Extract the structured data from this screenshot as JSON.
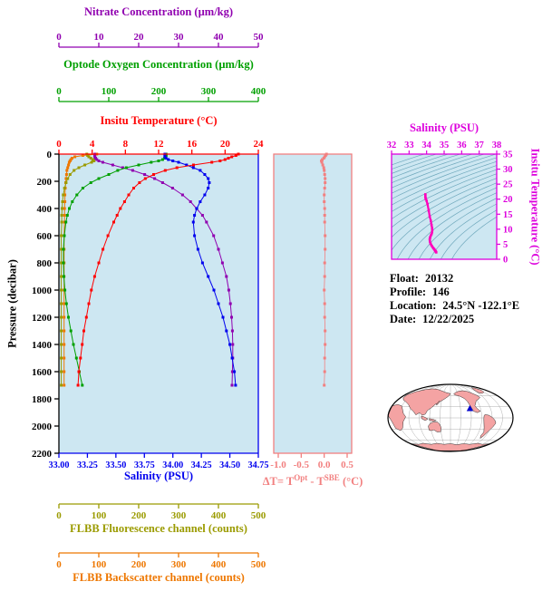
{
  "style": {
    "background": "#FFFFFF",
    "panel_bg": "#CDE7F2",
    "contour_color": "#6FA8BC",
    "axis_black": "#000000"
  },
  "info": {
    "float_label": "Float:",
    "float_value": "20132",
    "profile_label": "Profile:",
    "profile_value": "146",
    "location_label": "Location:",
    "location_value": "24.5°N -122.1°E",
    "date_label": "Date:",
    "date_value": "12/22/2025"
  },
  "map": {
    "marker": {
      "lat": 24.5,
      "lon": -122.1
    },
    "land_color": "#F4A3A3",
    "ocean_color": "#FFFFFF",
    "marker_color": "#0000CC"
  },
  "chart_data": {
    "main": {
      "type": "line",
      "title": "Float profile plot",
      "y_axis": {
        "label": "Pressure (decibar)",
        "min": 0,
        "max": 2200,
        "ticks": [
          0,
          200,
          400,
          600,
          800,
          1000,
          1200,
          1400,
          1600,
          1800,
          2000,
          2200
        ]
      },
      "pressures": [
        0,
        10,
        20,
        30,
        40,
        50,
        60,
        80,
        100,
        120,
        150,
        180,
        210,
        250,
        300,
        350,
        400,
        450,
        500,
        600,
        700,
        800,
        900,
        1000,
        1100,
        1200,
        1300,
        1400,
        1500,
        1600,
        1700
      ],
      "axes": {
        "nitrate": {
          "label": "Nitrate Concentration (µm/kg)",
          "color": "#9000B0",
          "min": 0,
          "max": 50,
          "ticks": [
            0,
            10,
            20,
            30,
            40,
            50
          ]
        },
        "oxygen": {
          "label": "Optode Oxygen Concentration (µm/kg)",
          "color": "#00A000",
          "min": 0,
          "max": 400,
          "ticks": [
            0,
            100,
            200,
            300,
            400
          ]
        },
        "temperature": {
          "label": "Insitu Temperature (°C)",
          "color": "#FF0000",
          "min": 0,
          "max": 24,
          "ticks": [
            0,
            4,
            8,
            12,
            16,
            20,
            24
          ]
        },
        "salinity": {
          "label": "Salinity (PSU)",
          "color": "#0000EE",
          "min": 33.0,
          "max": 34.75,
          "ticks": [
            "33.00",
            "33.25",
            "33.50",
            "33.75",
            "34.00",
            "34.25",
            "34.50",
            "34.75"
          ]
        },
        "fluorescence": {
          "label": "FLBB Fluorescence channel (counts)",
          "color": "#9B9B00",
          "min": 0,
          "max": 500,
          "ticks": [
            0,
            100,
            200,
            300,
            400,
            500
          ]
        },
        "backscatter": {
          "label": "FLBB Backscatter channel (counts)",
          "color": "#EE7700",
          "min": 0,
          "max": 500,
          "ticks": [
            0,
            100,
            200,
            300,
            400,
            500
          ]
        }
      },
      "series": {
        "temperature": [
          21.6,
          21.3,
          20.8,
          20.4,
          20.0,
          19.4,
          18.4,
          16.2,
          14.2,
          12.8,
          11.4,
          10.4,
          9.7,
          9.0,
          8.4,
          7.9,
          7.4,
          7.0,
          6.6,
          5.9,
          5.3,
          4.8,
          4.3,
          3.9,
          3.6,
          3.3,
          3.0,
          2.8,
          2.6,
          2.4,
          2.3
        ],
        "salinity": [
          33.93,
          33.93,
          33.93,
          33.94,
          33.96,
          34.0,
          34.05,
          34.12,
          34.18,
          34.24,
          34.28,
          34.31,
          34.32,
          34.31,
          34.28,
          34.24,
          34.21,
          34.19,
          34.18,
          34.19,
          34.22,
          34.26,
          34.31,
          34.36,
          34.4,
          34.44,
          34.47,
          34.5,
          34.52,
          34.54,
          34.55
        ],
        "oxygen": [
          215,
          215,
          214,
          212,
          208,
          200,
          185,
          160,
          135,
          118,
          100,
          80,
          64,
          48,
          36,
          27,
          21,
          17,
          14,
          11,
          9,
          9,
          10,
          12,
          15,
          19,
          24,
          29,
          35,
          41,
          47
        ],
        "nitrate": [
          9,
          9,
          9,
          9.2,
          9.5,
          10,
          11,
          13.5,
          16,
          18.5,
          21.5,
          24,
          26,
          28.5,
          31,
          33,
          34.5,
          36,
          37,
          38.8,
          40,
          41,
          42,
          42.6,
          43,
          43.3,
          43.5,
          43.6,
          43.6,
          43.5,
          43.4
        ],
        "fluorescence": [
          70,
          72,
          75,
          80,
          85,
          88,
          82,
          65,
          50,
          38,
          28,
          22,
          18,
          14,
          11,
          9,
          8,
          7,
          7,
          6,
          6,
          6,
          6,
          6,
          6,
          6,
          6,
          6,
          6,
          6,
          6
        ],
        "backscatter": [
          95,
          60,
          40,
          33,
          30,
          28,
          26,
          24,
          22,
          20,
          19,
          18,
          17,
          16,
          15,
          15,
          14,
          14,
          14,
          13,
          13,
          13,
          13,
          13,
          13,
          13,
          13,
          13,
          13,
          13,
          13
        ]
      }
    },
    "delta_t": {
      "type": "scatter",
      "color": "#F28080",
      "x_min": -1.0,
      "x_max": 0.5,
      "ticks": [
        "-1.0",
        "-0.5",
        "0.0",
        "0.5"
      ],
      "label_parts": {
        "pre": "ΔT= T",
        "sup1": "Opt",
        "mid": " - T",
        "sup2": "SBE",
        "post": " (°C)"
      },
      "values": [
        0.05,
        0.03,
        0.01,
        -0.01,
        -0.04,
        -0.06,
        -0.05,
        -0.03,
        -0.01,
        0.0,
        0.01,
        0.02,
        0.02,
        0.01,
        0.0,
        0.0,
        0.01,
        0.01,
        0.01,
        0.02,
        0.02,
        0.01,
        0.01,
        0.0,
        0.01,
        0.01,
        0.02,
        0.02,
        0.01,
        0.01,
        0.0
      ]
    },
    "ts": {
      "type": "line",
      "x_label": "Salinity (PSU)",
      "x_min": 32,
      "x_max": 38,
      "x_ticks": [
        32,
        33,
        34,
        35,
        36,
        37,
        38
      ],
      "y_label": "Insitu Temperature (°C)",
      "y_min": 0,
      "y_max": 35,
      "y_ticks": [
        0,
        5,
        10,
        15,
        20,
        25,
        30,
        35
      ],
      "label_color": "#DD00DD",
      "curve_color": "#FF00BB",
      "note": "T-S curve plots main.series.salinity (x) vs main.series.temperature (y); background shows density contours"
    }
  }
}
